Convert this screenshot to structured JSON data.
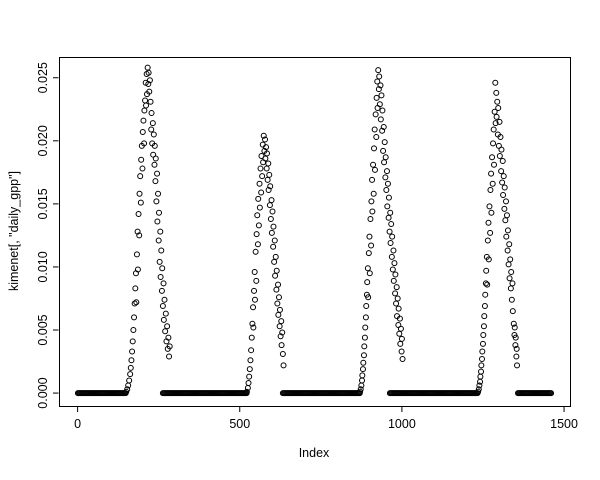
{
  "figure": {
    "background": "#ffffff",
    "foreground": "#000000"
  },
  "chart_data": {
    "type": "scatter",
    "title": "",
    "xlabel": "Index",
    "ylabel": "kimenet[, \"daily_gpp\"]",
    "xlim": [
      -57.36,
      1518.36
    ],
    "ylim": [
      -0.001025,
      0.026645
    ],
    "grid": false,
    "legend": null,
    "x_ticks": {
      "values": [
        0,
        500,
        1000,
        1500
      ],
      "labels": [
        "0",
        "500",
        "1000",
        "1500"
      ]
    },
    "y_ticks": {
      "values": [
        0,
        0.005,
        0.01,
        0.015,
        0.02,
        0.025
      ],
      "labels": [
        "0.000",
        "0.005",
        "0.010",
        "0.015",
        "0.020",
        "0.025"
      ]
    },
    "marker": {
      "shape": "open-circle",
      "color": "#000000",
      "radius_px": 2.5
    },
    "zero_runs": {
      "value": 0,
      "step": 3,
      "ranges": [
        [
          1,
          150
        ],
        [
          263,
          522
        ],
        [
          633,
          871
        ],
        [
          963,
          1235
        ],
        [
          1358,
          1460
        ]
      ]
    },
    "points": [
      [
        150,
        0.0001
      ],
      [
        153,
        0.0003
      ],
      [
        156,
        0.0006
      ],
      [
        159,
        0.001
      ],
      [
        162,
        0.0015
      ],
      [
        164,
        0.002
      ],
      [
        166,
        0.0026
      ],
      [
        168,
        0.0033
      ],
      [
        170,
        0.0041
      ],
      [
        172,
        0.005
      ],
      [
        174,
        0.006
      ],
      [
        176,
        0.0071
      ],
      [
        178,
        0.0083
      ],
      [
        180,
        0.0095
      ],
      [
        181,
        0.0072
      ],
      [
        183,
        0.011
      ],
      [
        185,
        0.0128
      ],
      [
        186,
        0.0098
      ],
      [
        188,
        0.0142
      ],
      [
        190,
        0.0125
      ],
      [
        191,
        0.0158
      ],
      [
        193,
        0.0172
      ],
      [
        195,
        0.0151
      ],
      [
        196,
        0.0185
      ],
      [
        198,
        0.0196
      ],
      [
        200,
        0.0178
      ],
      [
        201,
        0.0207
      ],
      [
        203,
        0.0216
      ],
      [
        205,
        0.0198
      ],
      [
        206,
        0.0224
      ],
      [
        208,
        0.0232
      ],
      [
        210,
        0.0246
      ],
      [
        211,
        0.0228
      ],
      [
        213,
        0.0253
      ],
      [
        214,
        0.0237
      ],
      [
        216,
        0.0258
      ],
      [
        218,
        0.0245
      ],
      [
        219,
        0.0254
      ],
      [
        221,
        0.0239
      ],
      [
        223,
        0.0248
      ],
      [
        225,
        0.0231
      ],
      [
        227,
        0.0209
      ],
      [
        228,
        0.0222
      ],
      [
        230,
        0.0198
      ],
      [
        232,
        0.0214
      ],
      [
        233,
        0.0189
      ],
      [
        235,
        0.0205
      ],
      [
        237,
        0.0181
      ],
      [
        238,
        0.0196
      ],
      [
        240,
        0.0168
      ],
      [
        241,
        0.0186
      ],
      [
        243,
        0.0152
      ],
      [
        245,
        0.0174
      ],
      [
        246,
        0.0136
      ],
      [
        248,
        0.0158
      ],
      [
        250,
        0.0121
      ],
      [
        251,
        0.0143
      ],
      [
        253,
        0.0104
      ],
      [
        255,
        0.0128
      ],
      [
        256,
        0.0092
      ],
      [
        258,
        0.0113
      ],
      [
        260,
        0.0081
      ],
      [
        261,
        0.0099
      ],
      [
        263,
        0.0069
      ],
      [
        265,
        0.0087
      ],
      [
        266,
        0.0058
      ],
      [
        268,
        0.0074
      ],
      [
        270,
        0.0049
      ],
      [
        272,
        0.0063
      ],
      [
        274,
        0.0041
      ],
      [
        276,
        0.0053
      ],
      [
        278,
        0.0035
      ],
      [
        280,
        0.0044
      ],
      [
        282,
        0.0029
      ],
      [
        284,
        0.0037
      ],
      [
        522,
        0.0001
      ],
      [
        525,
        0.0004
      ],
      [
        527,
        0.0008
      ],
      [
        529,
        0.0013
      ],
      [
        531,
        0.0019
      ],
      [
        533,
        0.0026
      ],
      [
        535,
        0.0034
      ],
      [
        537,
        0.0044
      ],
      [
        539,
        0.0055
      ],
      [
        541,
        0.0068
      ],
      [
        542,
        0.0052
      ],
      [
        544,
        0.0081
      ],
      [
        546,
        0.0096
      ],
      [
        547,
        0.0074
      ],
      [
        549,
        0.0112
      ],
      [
        551,
        0.0089
      ],
      [
        552,
        0.0126
      ],
      [
        554,
        0.0141
      ],
      [
        556,
        0.0118
      ],
      [
        557,
        0.0154
      ],
      [
        559,
        0.0133
      ],
      [
        561,
        0.0166
      ],
      [
        562,
        0.0147
      ],
      [
        564,
        0.0178
      ],
      [
        566,
        0.0159
      ],
      [
        567,
        0.0188
      ],
      [
        569,
        0.0172
      ],
      [
        571,
        0.0197
      ],
      [
        572,
        0.0183
      ],
      [
        574,
        0.0204
      ],
      [
        576,
        0.0192
      ],
      [
        578,
        0.0201
      ],
      [
        579,
        0.0186
      ],
      [
        581,
        0.0195
      ],
      [
        583,
        0.0178
      ],
      [
        584,
        0.019
      ],
      [
        586,
        0.0169
      ],
      [
        588,
        0.0182
      ],
      [
        589,
        0.0161
      ],
      [
        591,
        0.0173
      ],
      [
        593,
        0.0149
      ],
      [
        594,
        0.0164
      ],
      [
        596,
        0.0138
      ],
      [
        598,
        0.0153
      ],
      [
        599,
        0.0127
      ],
      [
        601,
        0.0144
      ],
      [
        603,
        0.0116
      ],
      [
        604,
        0.0132
      ],
      [
        606,
        0.0104
      ],
      [
        608,
        0.0121
      ],
      [
        609,
        0.0093
      ],
      [
        611,
        0.0108
      ],
      [
        613,
        0.0082
      ],
      [
        614,
        0.0097
      ],
      [
        616,
        0.0071
      ],
      [
        618,
        0.0086
      ],
      [
        619,
        0.0062
      ],
      [
        621,
        0.0076
      ],
      [
        623,
        0.0053
      ],
      [
        624,
        0.0066
      ],
      [
        626,
        0.0045
      ],
      [
        628,
        0.0057
      ],
      [
        629,
        0.0038
      ],
      [
        631,
        0.0048
      ],
      [
        633,
        0.0031
      ],
      [
        635,
        0.0022
      ],
      [
        871,
        0.0001
      ],
      [
        873,
        0.0003
      ],
      [
        875,
        0.0006
      ],
      [
        877,
        0.001
      ],
      [
        878,
        0.0014
      ],
      [
        880,
        0.0019
      ],
      [
        881,
        0.0024
      ],
      [
        883,
        0.003
      ],
      [
        884,
        0.0037
      ],
      [
        886,
        0.0044
      ],
      [
        887,
        0.0052
      ],
      [
        889,
        0.006
      ],
      [
        890,
        0.0069
      ],
      [
        892,
        0.0078
      ],
      [
        893,
        0.0088
      ],
      [
        895,
        0.0099
      ],
      [
        896,
        0.0076
      ],
      [
        898,
        0.0111
      ],
      [
        900,
        0.0124
      ],
      [
        901,
        0.0095
      ],
      [
        903,
        0.0138
      ],
      [
        905,
        0.0117
      ],
      [
        906,
        0.0152
      ],
      [
        908,
        0.0169
      ],
      [
        909,
        0.0144
      ],
      [
        911,
        0.0181
      ],
      [
        913,
        0.0158
      ],
      [
        914,
        0.0194
      ],
      [
        916,
        0.0209
      ],
      [
        917,
        0.0177
      ],
      [
        919,
        0.0221
      ],
      [
        921,
        0.0203
      ],
      [
        922,
        0.0234
      ],
      [
        924,
        0.0247
      ],
      [
        925,
        0.0226
      ],
      [
        927,
        0.0256
      ],
      [
        929,
        0.0241
      ],
      [
        930,
        0.0251
      ],
      [
        932,
        0.0229
      ],
      [
        934,
        0.0244
      ],
      [
        935,
        0.0217
      ],
      [
        937,
        0.0236
      ],
      [
        939,
        0.0208
      ],
      [
        940,
        0.0224
      ],
      [
        942,
        0.0192
      ],
      [
        944,
        0.0211
      ],
      [
        945,
        0.0183
      ],
      [
        947,
        0.0199
      ],
      [
        949,
        0.0171
      ],
      [
        950,
        0.0187
      ],
      [
        952,
        0.0161
      ],
      [
        954,
        0.0176
      ],
      [
        955,
        0.0148
      ],
      [
        957,
        0.0166
      ],
      [
        959,
        0.0139
      ],
      [
        960,
        0.0155
      ],
      [
        962,
        0.0128
      ],
      [
        964,
        0.0143
      ],
      [
        965,
        0.0119
      ],
      [
        967,
        0.0134
      ],
      [
        969,
        0.0108
      ],
      [
        970,
        0.0124
      ],
      [
        972,
        0.0098
      ],
      [
        974,
        0.0113
      ],
      [
        975,
        0.0089
      ],
      [
        977,
        0.0103
      ],
      [
        979,
        0.0079
      ],
      [
        980,
        0.0094
      ],
      [
        982,
        0.0071
      ],
      [
        984,
        0.0084
      ],
      [
        985,
        0.0061
      ],
      [
        987,
        0.0075
      ],
      [
        989,
        0.0054
      ],
      [
        990,
        0.0067
      ],
      [
        992,
        0.0047
      ],
      [
        994,
        0.0059
      ],
      [
        995,
        0.0039
      ],
      [
        997,
        0.0051
      ],
      [
        999,
        0.0033
      ],
      [
        1000,
        0.0043
      ],
      [
        1002,
        0.0027
      ],
      [
        1235,
        0.0001
      ],
      [
        1237,
        0.0003
      ],
      [
        1239,
        0.0006
      ],
      [
        1241,
        0.0009
      ],
      [
        1242,
        0.0013
      ],
      [
        1244,
        0.0017
      ],
      [
        1245,
        0.0022
      ],
      [
        1247,
        0.0027
      ],
      [
        1248,
        0.0033
      ],
      [
        1250,
        0.0039
      ],
      [
        1251,
        0.0046
      ],
      [
        1253,
        0.0053
      ],
      [
        1254,
        0.0061
      ],
      [
        1256,
        0.0069
      ],
      [
        1257,
        0.0078
      ],
      [
        1259,
        0.0087
      ],
      [
        1260,
        0.0097
      ],
      [
        1262,
        0.0108
      ],
      [
        1263,
        0.0086
      ],
      [
        1265,
        0.0121
      ],
      [
        1267,
        0.0135
      ],
      [
        1268,
        0.0106
      ],
      [
        1270,
        0.0148
      ],
      [
        1272,
        0.0127
      ],
      [
        1273,
        0.0161
      ],
      [
        1275,
        0.0174
      ],
      [
        1276,
        0.0143
      ],
      [
        1278,
        0.0187
      ],
      [
        1280,
        0.0166
      ],
      [
        1281,
        0.0198
      ],
      [
        1283,
        0.0209
      ],
      [
        1284,
        0.0181
      ],
      [
        1286,
        0.0223
      ],
      [
        1288,
        0.0246
      ],
      [
        1289,
        0.0214
      ],
      [
        1291,
        0.0238
      ],
      [
        1292,
        0.0219
      ],
      [
        1294,
        0.0231
      ],
      [
        1296,
        0.0205
      ],
      [
        1297,
        0.0226
      ],
      [
        1299,
        0.0196
      ],
      [
        1301,
        0.0215
      ],
      [
        1302,
        0.0188
      ],
      [
        1304,
        0.0203
      ],
      [
        1306,
        0.0176
      ],
      [
        1307,
        0.0193
      ],
      [
        1309,
        0.0167
      ],
      [
        1311,
        0.0184
      ],
      [
        1312,
        0.0157
      ],
      [
        1314,
        0.0172
      ],
      [
        1316,
        0.0146
      ],
      [
        1317,
        0.0163
      ],
      [
        1319,
        0.0137
      ],
      [
        1321,
        0.0152
      ],
      [
        1322,
        0.0124
      ],
      [
        1324,
        0.0141
      ],
      [
        1326,
        0.0113
      ],
      [
        1327,
        0.0129
      ],
      [
        1329,
        0.0102
      ],
      [
        1331,
        0.0118
      ],
      [
        1332,
        0.0091
      ],
      [
        1334,
        0.0106
      ],
      [
        1336,
        0.0083
      ],
      [
        1337,
        0.0096
      ],
      [
        1339,
        0.0074
      ],
      [
        1341,
        0.0087
      ],
      [
        1342,
        0.0065
      ],
      [
        1345,
        0.0055
      ],
      [
        1347,
        0.0046
      ],
      [
        1348,
        0.0052
      ],
      [
        1350,
        0.0038
      ],
      [
        1351,
        0.0044
      ],
      [
        1353,
        0.0029
      ],
      [
        1354,
        0.0035
      ],
      [
        1355,
        0.0022
      ]
    ]
  }
}
